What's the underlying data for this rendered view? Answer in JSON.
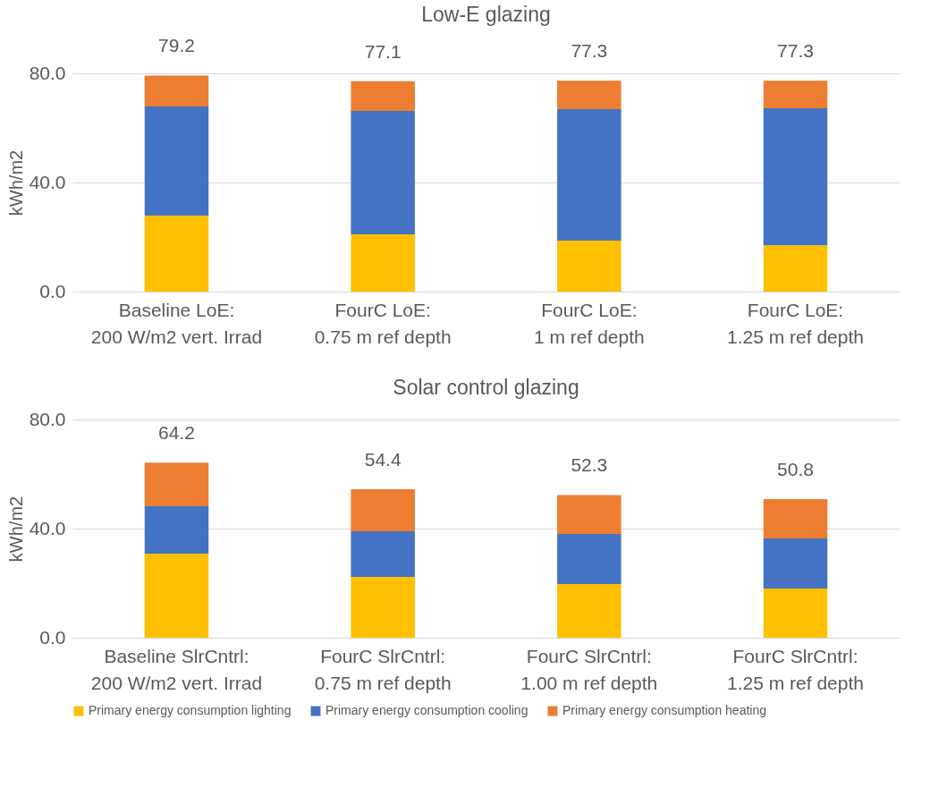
{
  "chart_data": [
    {
      "type": "bar",
      "title": "Low-E glazing",
      "ylabel": "kWh/m2",
      "stacked": true,
      "grid": "y",
      "categories": [
        "Baseline LoE: 200 W/m2 vert. Irrad",
        "FourC LoE: 0.75 m ref depth",
        "FourC LoE: 1 m ref depth",
        "FourC LoE: 1.25 m ref depth"
      ],
      "series": [
        {
          "color": "#ffc000",
          "values": [
            27.9,
            21.0,
            18.7,
            17.0
          ]
        },
        {
          "color": "#4472c4",
          "values": [
            40.0,
            45.2,
            48.2,
            50.2
          ]
        },
        {
          "color": "#ed7d31",
          "values": [
            11.3,
            10.9,
            10.4,
            10.1
          ]
        }
      ],
      "totals": [
        "79.2",
        "77.1",
        "77.3",
        "77.3"
      ],
      "ylim": [
        0,
        80
      ],
      "yticks": [
        {
          "value": 0,
          "label": "0.0"
        },
        {
          "value": 40,
          "label": "40.0"
        },
        {
          "value": 80,
          "label": "80.0"
        }
      ]
    },
    {
      "type": "bar",
      "title": "Solar control glazing",
      "ylabel": "kWh/m2",
      "stacked": true,
      "grid": "y",
      "categories": [
        "Baseline SlrCntrl: 200 W/m2 vert. Irrad",
        "FourC SlrCntrl: 0.75 m ref depth",
        "FourC SlrCntrl: 1.00 m ref depth",
        "FourC SlrCntrl: 1.25 m ref depth"
      ],
      "series": [
        {
          "name": "Primary energy consumption lighting",
          "color": "#ffc000",
          "values": [
            30.8,
            22.3,
            19.7,
            18.0
          ]
        },
        {
          "name": "Primary energy consumption cooling",
          "color": "#4472c4",
          "values": [
            17.4,
            16.7,
            18.3,
            18.4
          ]
        },
        {
          "name": "Primary energy consumption heating",
          "color": "#ed7d31",
          "values": [
            16.0,
            15.4,
            14.3,
            14.4
          ]
        }
      ],
      "totals": [
        "64.2",
        "54.4",
        "52.3",
        "50.8"
      ],
      "ylim": [
        0,
        80
      ],
      "yticks": [
        {
          "value": 0,
          "label": "0.0"
        },
        {
          "value": 40,
          "label": "40.0"
        },
        {
          "value": 80,
          "label": "80.0"
        }
      ],
      "legend": "bottom"
    }
  ]
}
